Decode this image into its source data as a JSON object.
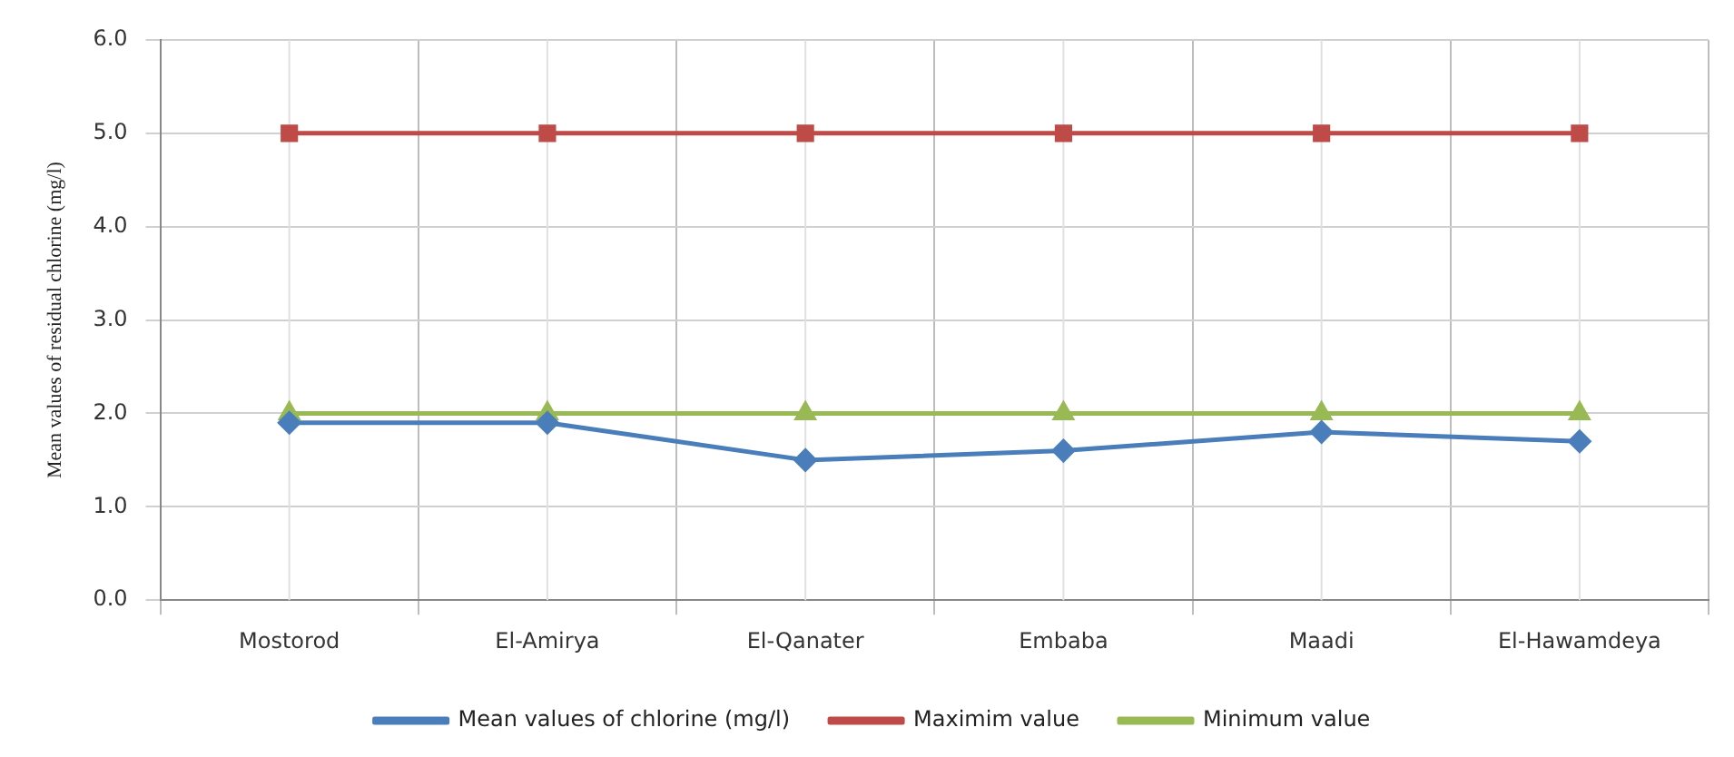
{
  "chart_data": {
    "type": "line",
    "ylabel": "Mean values of residual chlorine (mg/l)",
    "categories": [
      "Mostorod",
      "El-Amirya",
      "El-Qanater",
      "Embaba",
      "Maadi",
      "El-Hawamdeya"
    ],
    "series": [
      {
        "name": "Mean values of chlorine (mg/l)",
        "color": "#4a7ebb",
        "marker": "diamond",
        "values": [
          1.9,
          1.9,
          1.5,
          1.6,
          1.8,
          1.7
        ]
      },
      {
        "name": "Maximim value",
        "color": "#be4b48",
        "marker": "square",
        "values": [
          5.0,
          5.0,
          5.0,
          5.0,
          5.0,
          5.0
        ]
      },
      {
        "name": "Minimum value",
        "color": "#98b954",
        "marker": "triangle",
        "values": [
          2.0,
          2.0,
          2.0,
          2.0,
          2.0,
          2.0
        ]
      }
    ],
    "ylim": [
      0,
      6
    ],
    "yticks": [
      {
        "value": 0,
        "label": "0.0"
      },
      {
        "value": 1,
        "label": "1.0"
      },
      {
        "value": 2,
        "label": "2.0"
      },
      {
        "value": 3,
        "label": "3.0"
      },
      {
        "value": 4,
        "label": "4.0"
      },
      {
        "value": 5,
        "label": "5.0"
      },
      {
        "value": 6,
        "label": "6.0"
      }
    ],
    "grid": true,
    "legend": "bottom",
    "line_style": "solid"
  }
}
